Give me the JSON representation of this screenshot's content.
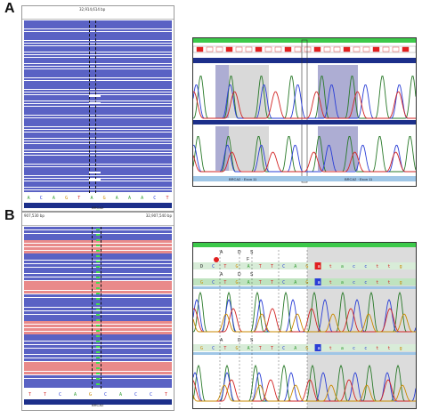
{
  "panels": [
    {
      "letter": "A",
      "igv": {
        "coordinate_label": "32,914,614 bp",
        "sequence": [
          "A",
          "C",
          "A",
          "G",
          "T",
          "A",
          "G",
          "A",
          "A",
          "A",
          "C",
          "T"
        ],
        "gene_label": "BRCA2"
      },
      "chromatogram": {
        "exon_labels": [
          "BRCA2 · Exon 11",
          "BRCA2 · Exon 11"
        ]
      }
    },
    {
      "letter": "B",
      "igv": {
        "coordinate_left": "907,530 bp",
        "coordinate_right": "32,907,540 bp",
        "sequence": [
          "T",
          "T",
          "C",
          "A",
          "G",
          "C",
          "A",
          "C",
          "C",
          "T"
        ],
        "gene_label": "BRCA2"
      },
      "chromatogram": {
        "row1_letters": [
          "A",
          "D",
          "S"
        ],
        "row2_letters": [
          "D",
          "C",
          "T",
          "G",
          "A",
          "T",
          "T",
          "C",
          "A",
          "G",
          "a",
          "t",
          "a",
          "c",
          "c",
          "t",
          "t",
          "g"
        ],
        "row2_mid": "F",
        "row3_letters": [
          "A",
          "D",
          "S"
        ],
        "row4_letters": [
          "G",
          "C",
          "T",
          "G",
          "A",
          "T",
          "T",
          "C",
          "A",
          "G",
          "a",
          "t",
          "a",
          "c",
          "c",
          "t",
          "t",
          "g"
        ],
        "row5_letters": [
          "A",
          "D",
          "S"
        ],
        "row6_letters": [
          "G",
          "C",
          "T",
          "G",
          "A",
          "T",
          "T",
          "C",
          "A",
          "G",
          "a",
          "t",
          "a",
          "c",
          "c",
          "t",
          "t",
          "g"
        ]
      }
    }
  ],
  "colors": {
    "read_blue": "#5a62c4",
    "read_red": "#e98a8a",
    "gene_bar": "#1c2f8a",
    "green_bar": "#3cc94a",
    "grey_shade": "#cfcfcf",
    "purple_shade": "#9999c8"
  }
}
